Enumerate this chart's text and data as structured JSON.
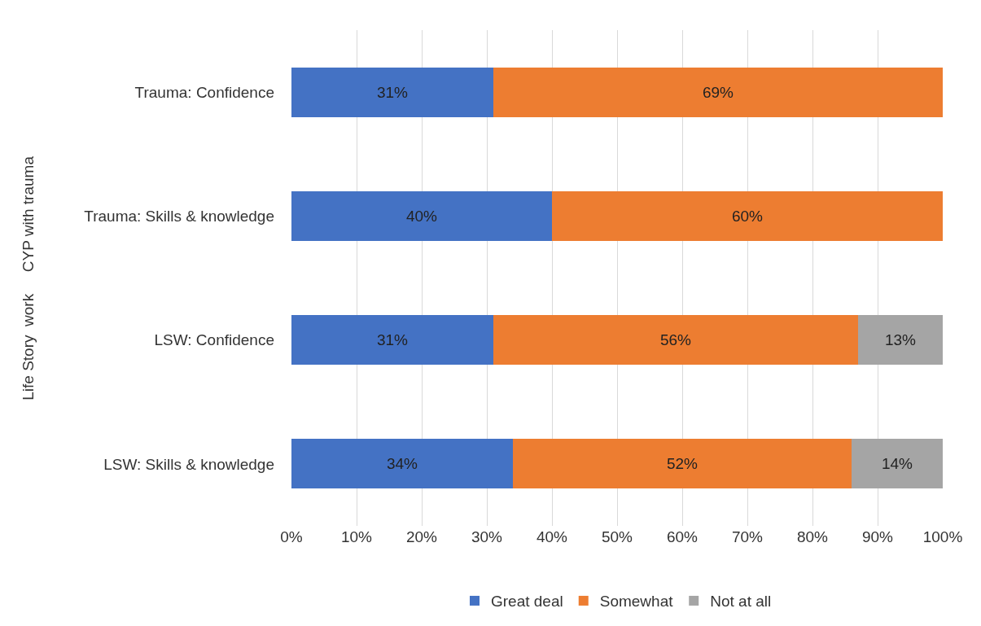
{
  "chart_data": {
    "type": "bar",
    "orientation": "horizontal",
    "stacked": true,
    "categories": [
      "Trauma: Confidence",
      "Trauma: Skills & knowledge",
      "LSW: Confidence",
      "LSW: Skills & knowledge"
    ],
    "series": [
      {
        "name": "Great deal",
        "color": "#4472c4",
        "values": [
          31,
          40,
          31,
          34
        ],
        "value_labels": [
          "31%",
          "40%",
          "31%",
          "34%"
        ]
      },
      {
        "name": "Somewhat",
        "color": "#ed7d31",
        "values": [
          69,
          60,
          56,
          52
        ],
        "value_labels": [
          "69%",
          "60%",
          "56%",
          "52%"
        ]
      },
      {
        "name": "Not at all",
        "color": "#a5a5a5",
        "values": [
          null,
          null,
          13,
          14
        ],
        "value_labels": [
          null,
          null,
          "13%",
          "14%"
        ]
      }
    ],
    "xlim": [
      0,
      100
    ],
    "xticks": [
      {
        "value": 0,
        "label": "0%"
      },
      {
        "value": 10,
        "label": "10%"
      },
      {
        "value": 20,
        "label": "20%"
      },
      {
        "value": 30,
        "label": "30%"
      },
      {
        "value": 40,
        "label": "40%"
      },
      {
        "value": 50,
        "label": "50%"
      },
      {
        "value": 60,
        "label": "60%"
      },
      {
        "value": 70,
        "label": "70%"
      },
      {
        "value": 80,
        "label": "80%"
      },
      {
        "value": 90,
        "label": "90%"
      },
      {
        "value": 100,
        "label": "100%"
      }
    ],
    "annotations": [
      "CYP with trauma",
      "Life Story  work"
    ],
    "grid": "x",
    "legend": "bottom"
  }
}
